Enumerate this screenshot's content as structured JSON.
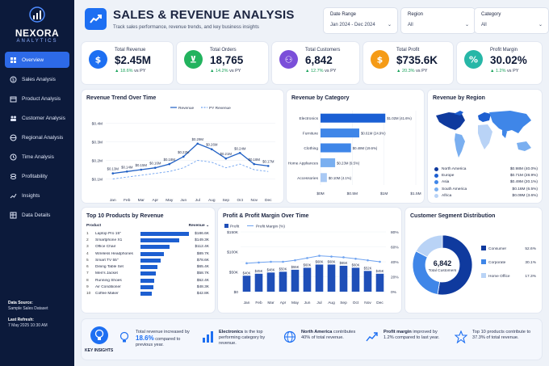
{
  "brand": {
    "name": "NEXORA",
    "sub": "ANALYTICS"
  },
  "nav": [
    {
      "label": "Overview",
      "icon": "grid-icon",
      "active": true
    },
    {
      "label": "Sales Analysis",
      "icon": "sales-icon"
    },
    {
      "label": "Product Analysis",
      "icon": "box-icon"
    },
    {
      "label": "Customer Analysis",
      "icon": "users-icon"
    },
    {
      "label": "Regional Analysis",
      "icon": "map-icon"
    },
    {
      "label": "Time Analysis",
      "icon": "clock-icon"
    },
    {
      "label": "Profitability",
      "icon": "coins-icon"
    },
    {
      "label": "Insights",
      "icon": "trend-icon"
    },
    {
      "label": "Data Details",
      "icon": "table-icon"
    }
  ],
  "footer": {
    "source_label": "Data Source:",
    "source": "Sample Sales Dataset",
    "refresh_label": "Last Refresh:",
    "refresh": "7 May 2025 10:30 AM"
  },
  "header": {
    "title": "SALES & REVENUE ANALYSIS",
    "subtitle": "Track sales performance, revenue trends, and key business insights"
  },
  "filters": [
    {
      "label": "Date Range",
      "value": "Jan 2024 - Dec 2024"
    },
    {
      "label": "Region",
      "value": "All"
    },
    {
      "label": "Category",
      "value": "All"
    }
  ],
  "kpis": [
    {
      "label": "Total Revenue",
      "value": "$2.45M",
      "delta": "▲ 18.6%",
      "suffix": "vs PY",
      "color": "#1d6ff2",
      "icon": "dollar-icon"
    },
    {
      "label": "Total Orders",
      "value": "18,765",
      "delta": "▲ 14.2%",
      "suffix": "vs PY",
      "color": "#22b35e",
      "icon": "cart-icon"
    },
    {
      "label": "Total Customers",
      "value": "6,842",
      "delta": "▲ 12.7%",
      "suffix": "vs PY",
      "color": "#7b4fd9",
      "icon": "users-icon"
    },
    {
      "label": "Total Profit",
      "value": "$735.6K",
      "delta": "▲ 20.3%",
      "suffix": "vs PY",
      "color": "#f59b16",
      "icon": "coin-icon"
    },
    {
      "label": "Profit Margin",
      "value": "30.02%",
      "delta": "▲ 1.2%",
      "suffix": "vs PY",
      "color": "#27b7a7",
      "icon": "percent-icon"
    }
  ],
  "chart_data": [
    {
      "type": "line",
      "title": "Revenue Trend Over Time",
      "x": [
        "Jan",
        "Feb",
        "Mar",
        "Apr",
        "May",
        "Jun",
        "Jul",
        "Aug",
        "Sep",
        "Oct",
        "Nov",
        "Dec"
      ],
      "ylabels": [
        "$0.1M",
        "$0.2M",
        "$0.3M",
        "$0.4M"
      ],
      "ylim": [
        0.05,
        0.45
      ],
      "series": [
        {
          "name": "Revenue",
          "values": [
            0.13,
            0.14,
            0.15,
            0.16,
            0.18,
            0.22,
            0.29,
            0.26,
            0.21,
            0.24,
            0.18,
            0.17
          ],
          "labels": [
            "$0.13M",
            "$0.14M",
            "$0.15M",
            "$0.16M",
            "$0.18M",
            "$0.22M",
            "$0.29M",
            "$0.26M",
            "$0.21M",
            "$0.24M",
            "$0.18M",
            "$0.17M"
          ],
          "color": "#1f5fc4"
        },
        {
          "name": "PY Revenue",
          "values": [
            0.1,
            0.11,
            0.12,
            0.13,
            0.14,
            0.16,
            0.2,
            0.19,
            0.16,
            0.18,
            0.15,
            0.14
          ],
          "color": "#6fa3f0",
          "dashed": true
        }
      ]
    },
    {
      "type": "bar",
      "title": "Revenue by Category",
      "orientation": "horizontal",
      "categories": [
        "Electronics",
        "Furniture",
        "Clothing",
        "Home Appliances",
        "Accessories"
      ],
      "values": [
        1.02,
        0.61,
        0.48,
        0.23,
        0.1
      ],
      "labels": [
        "$1.02M (41.6%)",
        "$0.61M (24.9%)",
        "$0.48M (19.6%)",
        "$0.23M (9.5%)",
        "$0.10M (4.1%)"
      ],
      "xticks": [
        "$0M",
        "$0.5M",
        "$1M",
        "$1.5M"
      ],
      "xlim": [
        0,
        1.5
      ]
    },
    {
      "type": "table",
      "title": "Revenue by Region",
      "categories": [
        "North America",
        "Europe",
        "Asia",
        "South America",
        "Africa"
      ],
      "values": [
        0.98,
        0.71,
        0.49,
        0.16,
        0.09
      ],
      "labels": [
        "$0.98M (40.0%)",
        "$0.71M (28.9%)",
        "$0.49M (20.1%)",
        "$0.16M (6.5%)",
        "$0.09M (3.6%)"
      ],
      "colors": [
        "#0f3a9e",
        "#1d5fd1",
        "#3f86e8",
        "#7aaff0",
        "#b9d3f6"
      ]
    },
    {
      "type": "bar",
      "title": "Top 10 Products by Revenue",
      "orientation": "horizontal",
      "headers": [
        "Product",
        "Revenue"
      ],
      "categories": [
        "Laptop Pro 15\"",
        "Smartphone X1",
        "Office Chair",
        "Wireless Headphones",
        "Smart TV 55\"",
        "Dining Table Set",
        "Men's Jacket",
        "Running Shoes",
        "Air Conditioner",
        "Coffee Maker"
      ],
      "values": [
        186.6,
        149.3,
        112.4,
        89.7,
        78.6,
        65.4,
        58.7,
        52.4,
        48.3,
        42.8
      ],
      "labels": [
        "$186.6K",
        "$149.3K",
        "$112.4K",
        "$89.7K",
        "$78.6K",
        "$65.4K",
        "$58.7K",
        "$52.4K",
        "$48.3K",
        "$42.8K"
      ]
    },
    {
      "type": "bar",
      "title": "Profit & Profit Margin Over Time",
      "x": [
        "Jan",
        "Feb",
        "Mar",
        "Apr",
        "May",
        "Jun",
        "Jul",
        "Aug",
        "Sep",
        "Oct",
        "Nov",
        "Dec"
      ],
      "series": [
        {
          "name": "Profit",
          "values": [
            40,
            45,
            48,
            50,
            55,
            60,
            68,
            68,
            65,
            60,
            52,
            45
          ],
          "labels": [
            "$40K",
            "$45K",
            "$48K",
            "$50K",
            "$55K",
            "$60K",
            "$68K",
            "$68K",
            "$65K",
            "$60K",
            "$52K",
            "$45K"
          ],
          "color": "#1f4fb8"
        },
        {
          "name": "Profit Margin (%)",
          "values": [
            38,
            39,
            40,
            40,
            42,
            45,
            48,
            47,
            46,
            44,
            42,
            40
          ],
          "color": "#6fa3f0"
        }
      ],
      "yleft": [
        "$0",
        "$50K",
        "$100K",
        "$150K"
      ],
      "ylim_left": [
        0,
        150
      ],
      "yright": [
        "0%",
        "20%",
        "40%",
        "60%",
        "80%"
      ],
      "ylim_right": [
        0,
        80
      ]
    },
    {
      "type": "pie",
      "title": "Customer Segment Distribution",
      "center_value": "6,842",
      "center_label": "Total Customers",
      "categories": [
        "Consumer",
        "Corporate",
        "Home Office"
      ],
      "values": [
        52.6,
        30.1,
        17.3
      ],
      "labels": [
        "52.6%",
        "30.1%",
        "17.3%"
      ],
      "colors": [
        "#0f3a9e",
        "#3f86e8",
        "#b9d3f6"
      ]
    }
  ],
  "insights": {
    "title": "KEY INSIGHTS",
    "items": [
      {
        "icon": "bulb-icon",
        "pre": "Total revenue increased by",
        "highlight": "18.6%",
        "post": "compared to previous year."
      },
      {
        "icon": "bars-icon",
        "strong": "Electronics",
        "text": "is the top performing category by revenue."
      },
      {
        "icon": "globe-icon",
        "strong": "North America",
        "text": "contributes 40% of total revenue."
      },
      {
        "icon": "trend-up-icon",
        "strong": "Profit margin",
        "text": "improved by 1.2% compared to last year."
      },
      {
        "icon": "star-icon",
        "text": "Top 10 products contribute to 37.3% of total revenue."
      }
    ]
  }
}
